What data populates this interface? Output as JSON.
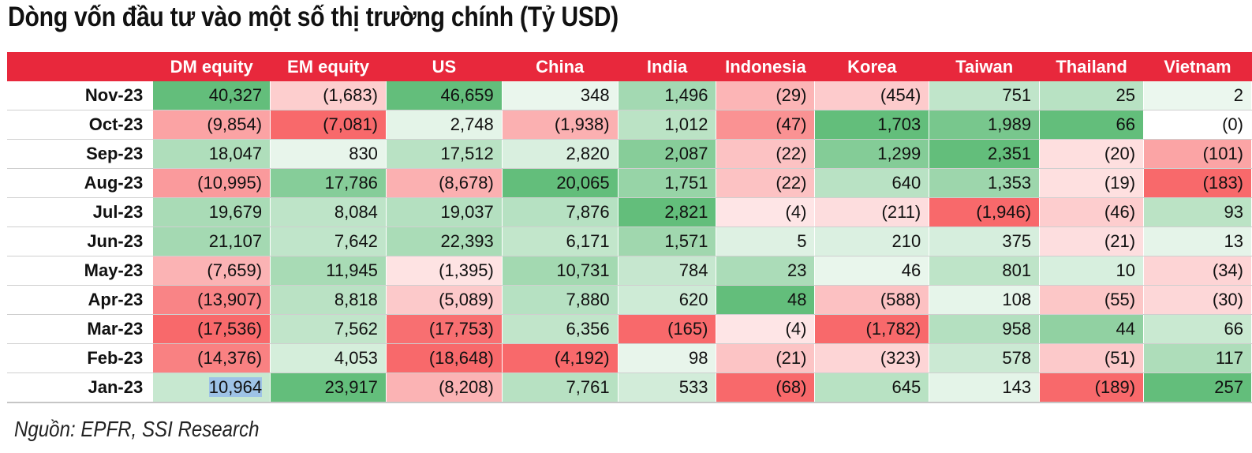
{
  "title": "Dòng vốn đầu tư vào một số thị trường chính (Tỷ USD)",
  "source": "Nguồn: EPFR, SSI Research",
  "columns": [
    "DM equity",
    "EM equity",
    "US",
    "China",
    "India",
    "Indonesia",
    "Korea",
    "Taiwan",
    "Thailand",
    "Vietnam"
  ],
  "rows": [
    {
      "label": "Nov-23",
      "cells": [
        "40,327",
        "(1,683)",
        "46,659",
        "348",
        "1,496",
        "(29)",
        "(454)",
        "751",
        "25",
        "2"
      ]
    },
    {
      "label": "Oct-23",
      "cells": [
        "(9,854)",
        "(7,081)",
        "2,748",
        "(1,938)",
        "1,012",
        "(47)",
        "1,703",
        "1,989",
        "66",
        "(0)"
      ]
    },
    {
      "label": "Sep-23",
      "cells": [
        "18,047",
        "830",
        "17,512",
        "2,820",
        "2,087",
        "(22)",
        "1,299",
        "2,351",
        "(20)",
        "(101)"
      ]
    },
    {
      "label": "Aug-23",
      "cells": [
        "(10,995)",
        "17,786",
        "(8,678)",
        "20,065",
        "1,751",
        "(22)",
        "640",
        "1,353",
        "(19)",
        "(183)"
      ]
    },
    {
      "label": "Jul-23",
      "cells": [
        "19,679",
        "8,084",
        "19,037",
        "7,876",
        "2,821",
        "(4)",
        "(211)",
        "(1,946)",
        "(46)",
        "93"
      ]
    },
    {
      "label": "Jun-23",
      "cells": [
        "21,107",
        "7,642",
        "22,393",
        "6,171",
        "1,571",
        "5",
        "210",
        "375",
        "(21)",
        "13"
      ]
    },
    {
      "label": "May-23",
      "cells": [
        "(7,659)",
        "11,945",
        "(1,395)",
        "10,731",
        "784",
        "23",
        "46",
        "801",
        "10",
        "(34)"
      ]
    },
    {
      "label": "Apr-23",
      "cells": [
        "(13,907)",
        "8,818",
        "(5,089)",
        "7,880",
        "620",
        "48",
        "(588)",
        "108",
        "(55)",
        "(30)"
      ]
    },
    {
      "label": "Mar-23",
      "cells": [
        "(17,536)",
        "7,562",
        "(17,753)",
        "6,356",
        "(165)",
        "(4)",
        "(1,782)",
        "958",
        "44",
        "66"
      ]
    },
    {
      "label": "Feb-23",
      "cells": [
        "(14,376)",
        "4,053",
        "(18,648)",
        "(4,192)",
        "98",
        "(21)",
        "(323)",
        "578",
        "(51)",
        "117"
      ]
    },
    {
      "label": "Jan-23",
      "cells": [
        "10,964",
        "23,917",
        "(8,208)",
        "7,761",
        "533",
        "(68)",
        "645",
        "143",
        "(189)",
        "257"
      ]
    }
  ],
  "colors": {
    "header_red": "#e8283c",
    "positive_max": "#63be7b",
    "negative_max": "#f8696b",
    "selection": "#9ec3e6"
  },
  "selected_cell": {
    "row": "Jan-23",
    "column": "DM equity"
  }
}
